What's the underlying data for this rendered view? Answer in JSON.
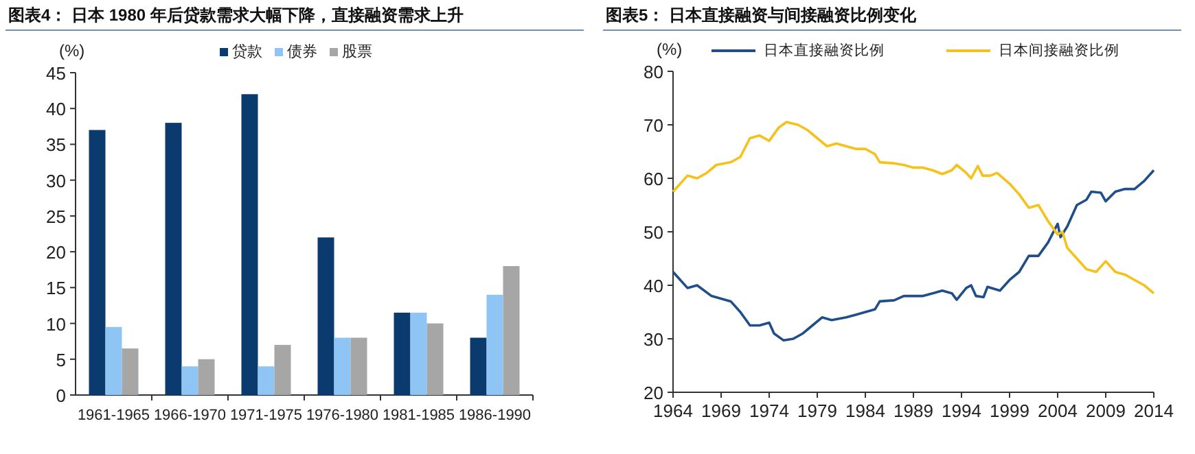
{
  "chart_data": [
    {
      "type": "bar",
      "title": "图表4：  日本 1980 年后贷款需求大幅下降，直接融资需求上升",
      "ylabel": "(%)",
      "categories": [
        "1961-1965",
        "1966-1970",
        "1971-1975",
        "1976-1980",
        "1981-1985",
        "1986-1990"
      ],
      "series": [
        {
          "name": "贷款",
          "color": "#0b3a6e",
          "values": [
            37,
            38,
            42,
            22,
            11.5,
            8
          ]
        },
        {
          "name": "债券",
          "color": "#8ec5f5",
          "values": [
            9.5,
            4,
            4,
            8,
            11.5,
            14
          ]
        },
        {
          "name": "股票",
          "color": "#a6a6a6",
          "values": [
            6.5,
            5,
            7,
            8,
            10,
            18
          ]
        }
      ],
      "ylim": [
        0,
        45
      ],
      "yticks": [
        0,
        5,
        10,
        15,
        20,
        25,
        30,
        35,
        40,
        45
      ],
      "grid": false,
      "legend": "top"
    },
    {
      "type": "line",
      "title": "图表5：  日本直接融资与间接融资比例变化",
      "ylabel": "(%)",
      "series": [
        {
          "name": "日本直接融资比例",
          "color": "#1f4e89",
          "x": [
            1964,
            1964.5,
            1965.5,
            1966.5,
            1968,
            1970,
            1971,
            1972,
            1973,
            1974,
            1974.5,
            1975.5,
            1976.5,
            1977.5,
            1978.5,
            1979.5,
            1980.5,
            1982,
            1983,
            1984,
            1985,
            1985.5,
            1987,
            1988,
            1989,
            1990,
            1991,
            1992,
            1993,
            1993.5,
            1994.5,
            1995,
            1995.5,
            1996.3,
            1996.7,
            1998,
            1999,
            2000,
            2001,
            2002,
            2003,
            2004,
            2004.3,
            2005,
            2006,
            2007,
            2007.5,
            2008.5,
            2009,
            2010,
            2011,
            2012,
            2013,
            2014
          ],
          "values": [
            42.5,
            41.5,
            39.5,
            40,
            38,
            37,
            35,
            32.5,
            32.5,
            33,
            31,
            29.7,
            30,
            31,
            32.5,
            34,
            33.5,
            34,
            34.5,
            35,
            35.5,
            37,
            37.2,
            38,
            38,
            38,
            38.5,
            39,
            38.5,
            37.3,
            39.5,
            40,
            38,
            37.8,
            39.7,
            39,
            41,
            42.5,
            45.5,
            45.5,
            48,
            51.5,
            49,
            51,
            55,
            56,
            57.5,
            57.3,
            55.7,
            57.5,
            58,
            58,
            59.5,
            61.5
          ]
        },
        {
          "name": "日本间接融资比例",
          "color": "#f5c21b",
          "x": [
            1964,
            1964.5,
            1965.5,
            1966.5,
            1967.5,
            1968.5,
            1970,
            1971,
            1972,
            1973,
            1974,
            1975,
            1975.8,
            1977,
            1978,
            1979,
            1980,
            1981,
            1982,
            1983,
            1984,
            1985,
            1985.5,
            1987,
            1988,
            1989,
            1990,
            1991,
            1992,
            1993,
            1993.5,
            1994.5,
            1995,
            1995.7,
            1996.2,
            1997,
            1997.7,
            1999,
            2000,
            2001,
            2002,
            2003,
            2004,
            2004.5,
            2005,
            2006,
            2007,
            2008,
            2009,
            2010,
            2011,
            2012,
            2013,
            2014
          ],
          "values": [
            57.5,
            58.5,
            60.5,
            60,
            61,
            62.5,
            63,
            64,
            67.5,
            68,
            67,
            69.5,
            70.5,
            70,
            69,
            67.5,
            66,
            66.5,
            66,
            65.5,
            65.5,
            64.5,
            63,
            62.8,
            62.5,
            62,
            62,
            61.5,
            60.8,
            61.5,
            62.5,
            61,
            60,
            62.3,
            60.5,
            60.5,
            61,
            59,
            57,
            54.5,
            55,
            52,
            49.5,
            50,
            47,
            45,
            43,
            42.5,
            44.5,
            42.5,
            42,
            41,
            40,
            38.5
          ]
        }
      ],
      "xlim": [
        1964,
        2014
      ],
      "xticks": [
        1964,
        1969,
        1974,
        1979,
        1984,
        1989,
        1994,
        1999,
        2004,
        2009,
        2014
      ],
      "ylim": [
        20,
        80
      ],
      "yticks": [
        20,
        30,
        40,
        50,
        60,
        70,
        80
      ],
      "grid": false,
      "legend": "top",
      "marker": "none",
      "line_style": "solid"
    }
  ]
}
